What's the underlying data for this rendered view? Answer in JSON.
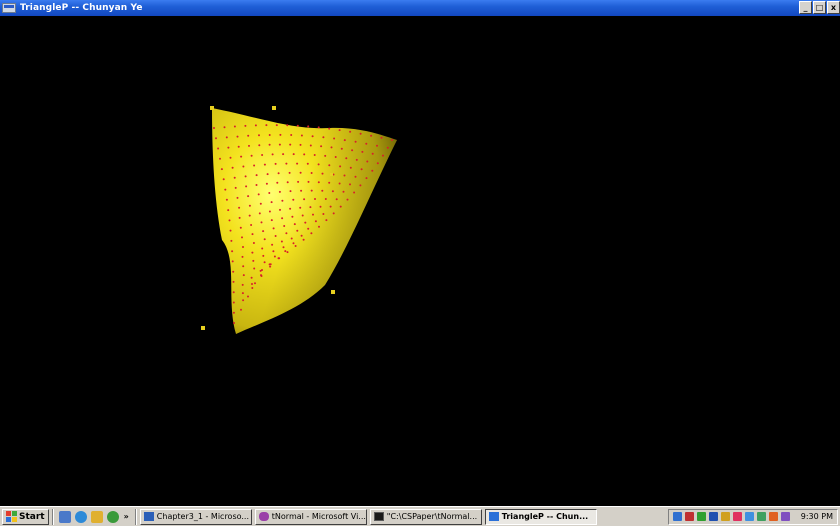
{
  "window": {
    "title": "TriangleP -- Chunyan Ye",
    "app_icon": "window-app-icon",
    "controls": {
      "minimize": "_",
      "maximize": "□",
      "close": "x"
    }
  },
  "scene": {
    "surface_color": "#f2e01a",
    "highlight_color": "#ffff66",
    "shadow_color": "#8a7a05",
    "point_color": "#d8202a",
    "control_point_color": "#e8d020",
    "background": "#000000"
  },
  "taskbar": {
    "start_label": "Start",
    "quick_launch_icons": [
      "desktop-icon",
      "browser-icon",
      "outlook-icon",
      "media-icon"
    ],
    "overflow": "»",
    "tasks": [
      {
        "label": "Chapter3_1 - Microso...",
        "icon": "word-icon",
        "color": "#2b5fb8"
      },
      {
        "label": "tNormal - Microsoft Vi...",
        "icon": "visual-studio-icon",
        "color": "#9a3fa8"
      },
      {
        "label": "\"C:\\CSPaper\\tNormal...",
        "icon": "console-icon",
        "color": "#1a1a1a"
      },
      {
        "label": "TriangleP -- Chun...",
        "icon": "opengl-window-icon",
        "color": "#2a70d8",
        "active": true
      }
    ],
    "tray_icons": [
      "tray-icon-1",
      "tray-icon-2",
      "tray-icon-3",
      "tray-icon-4",
      "tray-icon-5",
      "tray-icon-6",
      "tray-icon-7",
      "tray-icon-8",
      "tray-icon-9",
      "tray-icon-10"
    ],
    "clock": "9:30 PM"
  }
}
